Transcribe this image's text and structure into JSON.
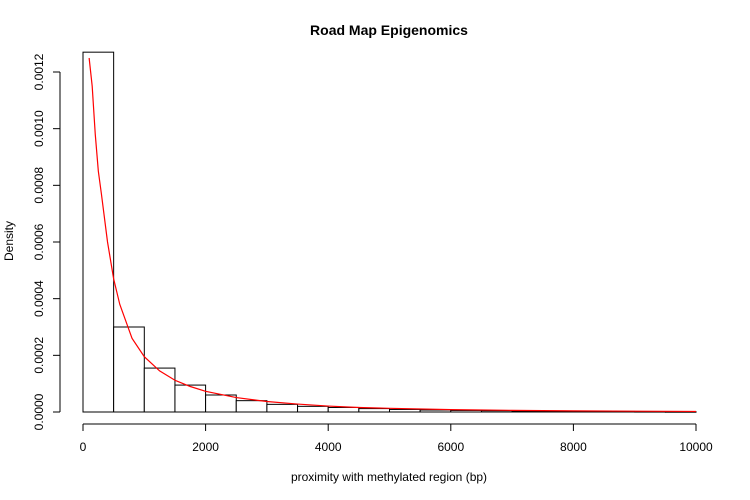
{
  "chart_data": {
    "type": "bar",
    "title": "Road Map Epigenomics",
    "xlabel": "proximity with methylated region (bp)",
    "ylabel": "Density",
    "xlim": [
      0,
      10000
    ],
    "ylim": [
      0,
      0.0013
    ],
    "x_ticks": [
      0,
      2000,
      4000,
      6000,
      8000,
      10000
    ],
    "x_tick_labels": [
      "0",
      "2000",
      "4000",
      "6000",
      "8000",
      "10000"
    ],
    "y_ticks": [
      0,
      0.0002,
      0.0004,
      0.0006,
      0.0008,
      0.001,
      0.0012
    ],
    "y_tick_labels": [
      "0.0000",
      "0.0002",
      "0.0004",
      "0.0006",
      "0.0008",
      "0.0010",
      "0.0012"
    ],
    "bin_width": 500,
    "bins": [
      {
        "start": 0,
        "end": 500,
        "density": 0.00127
      },
      {
        "start": 500,
        "end": 1000,
        "density": 0.0003
      },
      {
        "start": 1000,
        "end": 1500,
        "density": 0.000155
      },
      {
        "start": 1500,
        "end": 2000,
        "density": 9.5e-05
      },
      {
        "start": 2000,
        "end": 2500,
        "density": 6e-05
      },
      {
        "start": 2500,
        "end": 3000,
        "density": 4e-05
      },
      {
        "start": 3000,
        "end": 3500,
        "density": 2.7e-05
      },
      {
        "start": 3500,
        "end": 4000,
        "density": 2e-05
      },
      {
        "start": 4000,
        "end": 4500,
        "density": 1.6e-05
      },
      {
        "start": 4500,
        "end": 5000,
        "density": 1.2e-05
      },
      {
        "start": 5000,
        "end": 5500,
        "density": 9e-06
      },
      {
        "start": 5500,
        "end": 6000,
        "density": 7e-06
      },
      {
        "start": 6000,
        "end": 6500,
        "density": 5.5e-06
      },
      {
        "start": 6500,
        "end": 7000,
        "density": 4.5e-06
      },
      {
        "start": 7000,
        "end": 7500,
        "density": 3.5e-06
      },
      {
        "start": 7500,
        "end": 8000,
        "density": 3e-06
      },
      {
        "start": 8000,
        "end": 8500,
        "density": 2.5e-06
      },
      {
        "start": 8500,
        "end": 9000,
        "density": 2e-06
      },
      {
        "start": 9000,
        "end": 9500,
        "density": 1.5e-06
      },
      {
        "start": 9500,
        "end": 10000,
        "density": 1e-06
      }
    ],
    "fitted_curve": {
      "color": "#ff0000",
      "points": [
        [
          100,
          0.00133
        ],
        [
          150,
          0.00115
        ],
        [
          200,
          0.00098
        ],
        [
          250,
          0.00085
        ],
        [
          300,
          0.00077
        ],
        [
          400,
          0.0006
        ],
        [
          500,
          0.00047
        ],
        [
          600,
          0.00038
        ],
        [
          800,
          0.00026
        ],
        [
          1000,
          0.000195
        ],
        [
          1250,
          0.000145
        ],
        [
          1500,
          0.000112
        ],
        [
          1750,
          9e-05
        ],
        [
          2000,
          7.3e-05
        ],
        [
          2500,
          5.1e-05
        ],
        [
          3000,
          3.7e-05
        ],
        [
          3500,
          2.8e-05
        ],
        [
          4000,
          2.1e-05
        ],
        [
          4500,
          1.6e-05
        ],
        [
          5000,
          1.3e-05
        ],
        [
          6000,
          8.5e-06
        ],
        [
          7000,
          5.8e-06
        ],
        [
          8000,
          4e-06
        ],
        [
          9000,
          2.8e-06
        ],
        [
          10000,
          2e-06
        ]
      ]
    },
    "grid": false,
    "bar_fill": "#ffffff",
    "bar_stroke": "#000000"
  }
}
